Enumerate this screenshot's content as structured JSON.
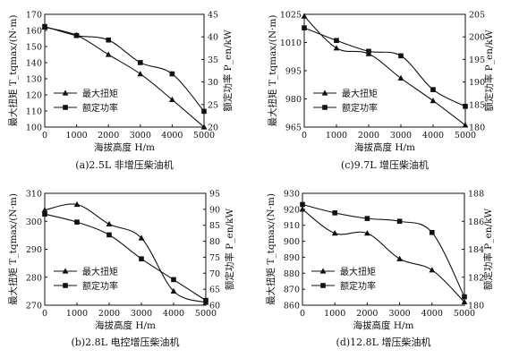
{
  "charts": [
    {
      "caption": "(a)2.5L 非增压柴油机",
      "legend": [
        "最大扭矩",
        "额定功率"
      ],
      "xlabel": "海拔高度 H/m",
      "ylabel_left": "最大扭矩 T_tqmax/(N·m)",
      "ylabel_right": "额定功率 P_en/kW",
      "x_ticks": [
        "0",
        "1000",
        "2000",
        "3000",
        "4000",
        "5000"
      ],
      "y_left_ticks": [
        "100",
        "110",
        "120",
        "130",
        "140",
        "150",
        "160",
        "170"
      ],
      "y_right_ticks": [
        "20",
        "25",
        "30",
        "35",
        "40",
        "45"
      ]
    },
    {
      "caption": "(c)9.7L 增压柴油机",
      "legend": [
        "最大扭矩",
        "额定功率"
      ],
      "xlabel": "海拔高度 H/m",
      "ylabel_left": "最大扭矩 T_tqmax/(N·m)",
      "ylabel_right": "额定功率 P_en/kW",
      "x_ticks": [
        "0",
        "1000",
        "2000",
        "3000",
        "4000",
        "5000"
      ],
      "y_left_ticks": [
        "965",
        "980",
        "995",
        "1010",
        "1025"
      ],
      "y_right_ticks": [
        "180",
        "185",
        "190",
        "195",
        "200",
        "205"
      ]
    },
    {
      "caption": "(b)2.8L 电控增压柴油机",
      "legend": [
        "最大扭矩",
        "额定功率"
      ],
      "xlabel": "海拔高度 H/m",
      "ylabel_left": "最大扭矩 T_tqmax/(N·m)",
      "ylabel_right": "额定功率 P_en/kW",
      "x_ticks": [
        "0",
        "1000",
        "2000",
        "3000",
        "4000",
        "5000"
      ],
      "y_left_ticks": [
        "270",
        "280",
        "290",
        "300",
        "310"
      ],
      "y_right_ticks": [
        "60",
        "65",
        "70",
        "75",
        "80",
        "85",
        "90",
        "95"
      ]
    },
    {
      "caption": "(d)12.8L 增压柴油机",
      "legend": [
        "最大扭矩",
        "额定功率"
      ],
      "xlabel": "海拔高度 H/m",
      "ylabel_left": "最大扭矩 T_tqmax/(N·m)",
      "ylabel_right": "额定功率 P_en/kW",
      "x_ticks": [
        "0",
        "1000",
        "2000",
        "3000",
        "4000",
        "5000"
      ],
      "y_left_ticks": [
        "860",
        "870",
        "880",
        "890",
        "900",
        "910",
        "920",
        "930"
      ],
      "y_right_ticks": [
        "180",
        "182",
        "184",
        "186",
        "188"
      ]
    }
  ],
  "chart_data": [
    {
      "type": "line",
      "title": "(a)2.5L 非增压柴油机",
      "xlabel": "海拔高度 H/m",
      "ylabel": "最大扭矩 T_tqmax/(N·m)",
      "y2label": "额定功率 P_en/kW",
      "xlim": [
        0,
        5000
      ],
      "ylim": [
        100,
        170
      ],
      "y2lim": [
        20,
        45
      ],
      "grid": false,
      "legend_position": "bottom-left",
      "x": [
        0,
        1000,
        2000,
        3000,
        4000,
        5000
      ],
      "series": [
        {
          "name": "最大扭矩",
          "axis": "left",
          "marker": "triangle",
          "values": [
            162,
            157,
            145,
            133,
            117,
            100
          ]
        },
        {
          "name": "额定功率",
          "axis": "right",
          "marker": "square",
          "values": [
            42.3,
            40.3,
            39.3,
            34.3,
            31.8,
            23.5
          ]
        }
      ]
    },
    {
      "type": "line",
      "title": "(c)9.7L 增压柴油机",
      "xlabel": "海拔高度 H/m",
      "ylabel": "最大扭矩 T_tqmax/(N·m)",
      "y2label": "额定功率 P_en/kW",
      "xlim": [
        0,
        5000
      ],
      "ylim": [
        965,
        1025
      ],
      "y2lim": [
        180,
        205
      ],
      "grid": false,
      "legend_position": "bottom-left",
      "x": [
        0,
        1000,
        2000,
        3000,
        4000,
        5000
      ],
      "series": [
        {
          "name": "最大扭矩",
          "axis": "left",
          "marker": "triangle",
          "values": [
            1024,
            1007,
            1004,
            991,
            979,
            966
          ]
        },
        {
          "name": "额定功率",
          "axis": "right",
          "marker": "square",
          "values": [
            202,
            199.2,
            196.8,
            195.8,
            188.3,
            184.6
          ]
        }
      ]
    },
    {
      "type": "line",
      "title": "(b)2.8L 电控增压柴油机",
      "xlabel": "海拔高度 H/m",
      "ylabel": "最大扭矩 T_tqmax/(N·m)",
      "y2label": "额定功率 P_en/kW",
      "xlim": [
        0,
        5000
      ],
      "ylim": [
        270,
        310
      ],
      "y2lim": [
        60,
        95
      ],
      "grid": false,
      "legend_position": "bottom-left",
      "x": [
        0,
        1000,
        2000,
        3000,
        4000,
        5000
      ],
      "series": [
        {
          "name": "最大扭矩",
          "axis": "left",
          "marker": "triangle",
          "values": [
            304,
            306,
            299,
            294,
            275,
            271
          ]
        },
        {
          "name": "额定功率",
          "axis": "right",
          "marker": "square",
          "values": [
            88.5,
            86,
            82,
            74.5,
            68,
            61.5
          ]
        }
      ]
    },
    {
      "type": "line",
      "title": "(d)12.8L 增压柴油机",
      "xlabel": "海拔高度 H/m",
      "ylabel": "最大扭矩 T_tqmax/(N·m)",
      "y2label": "额定功率 P_en/kW",
      "xlim": [
        0,
        5000
      ],
      "ylim": [
        860,
        930
      ],
      "y2lim": [
        180,
        188
      ],
      "grid": false,
      "legend_position": "bottom-left",
      "x": [
        0,
        1000,
        2000,
        3000,
        4000,
        5000
      ],
      "series": [
        {
          "name": "最大扭矩",
          "axis": "left",
          "marker": "triangle",
          "values": [
            920,
            905,
            905,
            889,
            882,
            862
          ]
        },
        {
          "name": "额定功率",
          "axis": "right",
          "marker": "square",
          "values": [
            187.2,
            186.6,
            186.2,
            186,
            185.2,
            180.6
          ]
        }
      ]
    }
  ]
}
